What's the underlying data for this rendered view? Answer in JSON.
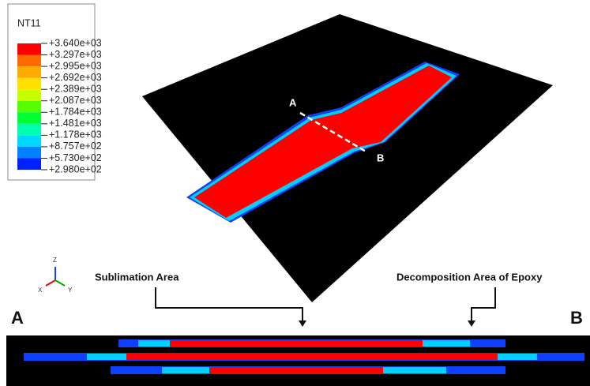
{
  "legend": {
    "title": "NT11",
    "labels": [
      "+3.640e+03",
      "+3.297e+03",
      "+2.995e+03",
      "+2.692e+03",
      "+2.389e+03",
      "+2.087e+03",
      "+1.784e+03",
      "+1.481e+03",
      "+1.178e+03",
      "+8.757e+02",
      "+5.730e+02",
      "+2.980e+02"
    ],
    "colors": [
      "#ff0000",
      "#ff6a00",
      "#ffaa00",
      "#ffe000",
      "#c8ff00",
      "#55ff00",
      "#00ff32",
      "#00ffb0",
      "#00d8ff",
      "#0082ff",
      "#0020ff",
      "#000000"
    ]
  },
  "triad": {
    "z": "Z",
    "x": "X",
    "y": "Y"
  },
  "plate": {
    "point_a": "A",
    "point_b": "B"
  },
  "annotations": {
    "sublimation": "Sublimation Area",
    "decomposition": "Decomposition Area of Epoxy"
  },
  "section": {
    "left": "A",
    "right": "B"
  }
}
